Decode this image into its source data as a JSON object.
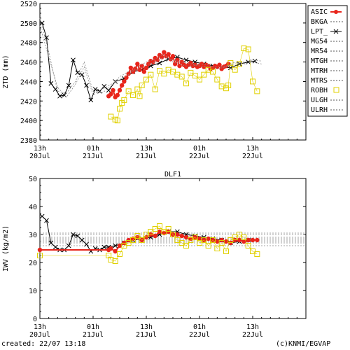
{
  "footer": {
    "created": "created: 22/07 13:18",
    "credit": "(c)KNMI/EGVAP"
  },
  "colors": {
    "ASIC": "#e8251b",
    "LPT_": "#000000",
    "ROBH": "#e0d000",
    "model": "#888888",
    "frame": "#000000"
  },
  "legend": [
    {
      "name": "ASIC",
      "style": "red-dot-line"
    },
    {
      "name": "BKGA",
      "style": "dotted"
    },
    {
      "name": "LPT_",
      "style": "cross-line"
    },
    {
      "name": "MG54",
      "style": "dotted"
    },
    {
      "name": "MR54",
      "style": "dotted"
    },
    {
      "name": "MTGH",
      "style": "dotted"
    },
    {
      "name": "MTRH",
      "style": "dotted"
    },
    {
      "name": "MTRS",
      "style": "dotted"
    },
    {
      "name": "ROBH",
      "style": "yellow-square"
    },
    {
      "name": "ULGH",
      "style": "dotted"
    },
    {
      "name": "ULRH",
      "style": "dotted"
    }
  ],
  "chart_data": [
    {
      "type": "line",
      "title": "",
      "ylabel": "ZTD (mm)",
      "xlabel": "",
      "xlim": [
        0,
        60
      ],
      "ylim": [
        2380,
        2520
      ],
      "yticks": [
        2380,
        2400,
        2420,
        2440,
        2460,
        2480,
        2500,
        2520
      ],
      "xticks": [
        {
          "x": 0,
          "top": "13h",
          "bottom": "20Jul"
        },
        {
          "x": 12,
          "top": "01h",
          "bottom": "21Jul"
        },
        {
          "x": 24,
          "top": "13h",
          "bottom": "21Jul"
        },
        {
          "x": 36,
          "top": "01h",
          "bottom": "22Jul"
        },
        {
          "x": 48,
          "top": "13h",
          "bottom": "22Jul"
        }
      ],
      "grid": false,
      "legend": "right",
      "series": [
        {
          "name": "LPT_",
          "x": [
            0.5,
            1.5,
            2.5,
            3.5,
            4.5,
            5.5,
            6.5,
            7.5,
            8.5,
            9.5,
            10.5,
            11.5,
            12.5,
            13.5,
            14.5,
            15.5,
            17,
            19,
            21,
            23,
            25,
            27,
            29,
            31,
            33,
            35,
            37,
            39,
            41,
            43,
            45,
            47,
            48.5
          ],
          "y": [
            2500,
            2485,
            2438,
            2432,
            2425,
            2426,
            2436,
            2462,
            2449,
            2447,
            2436,
            2421,
            2432,
            2430,
            2435,
            2431,
            2440,
            2443,
            2450,
            2452,
            2456,
            2459,
            2463,
            2465,
            2462,
            2460,
            2458,
            2456,
            2455,
            2454,
            2458,
            2460,
            2461
          ]
        },
        {
          "name": "ASIC",
          "x": [
            15.5,
            16,
            16.5,
            17,
            17.5,
            18,
            18.5,
            19,
            19.5,
            20,
            20.5,
            21,
            21.5,
            22,
            22.5,
            23,
            23.5,
            24,
            24.5,
            25,
            25.5,
            26,
            26.5,
            27,
            27.5,
            28,
            28.5,
            29,
            29.5,
            30,
            30.5,
            31,
            31.5,
            32,
            32.5,
            33,
            33.5,
            34,
            34.5,
            35,
            35.5,
            36,
            36.5,
            37,
            37.5,
            38,
            38.5,
            39,
            39.5,
            40,
            40.5,
            41,
            41.5,
            42,
            42.5
          ],
          "y": [
            2425,
            2427,
            2431,
            2424,
            2426,
            2431,
            2436,
            2440,
            2444,
            2448,
            2454,
            2450,
            2453,
            2458,
            2452,
            2456,
            2450,
            2454,
            2458,
            2461,
            2460,
            2464,
            2462,
            2467,
            2465,
            2470,
            2466,
            2468,
            2463,
            2466,
            2458,
            2462,
            2456,
            2460,
            2457,
            2455,
            2457,
            2459,
            2456,
            2457,
            2455,
            2456,
            2458,
            2455,
            2457,
            2456,
            2453,
            2454,
            2456,
            2455,
            2457,
            2453,
            2455,
            2456,
            2458
          ]
        },
        {
          "name": "ROBH",
          "x": [
            16,
            17,
            17.5,
            18,
            18.5,
            19,
            20,
            21,
            22,
            22.5,
            23,
            24,
            25,
            26,
            27,
            28,
            29,
            30,
            31,
            32,
            33,
            34,
            35,
            36,
            37,
            38,
            39,
            40,
            41,
            42,
            42.5,
            43,
            44,
            45,
            46,
            47,
            48,
            49
          ],
          "y": [
            2404,
            2401,
            2400,
            2412,
            2418,
            2421,
            2430,
            2426,
            2432,
            2425,
            2436,
            2442,
            2447,
            2432,
            2451,
            2448,
            2452,
            2450,
            2447,
            2445,
            2438,
            2449,
            2446,
            2442,
            2447,
            2452,
            2450,
            2442,
            2435,
            2433,
            2436,
            2459,
            2452,
            2458,
            2474,
            2473,
            2440,
            2430
          ]
        },
        {
          "name": "BKGA",
          "x": [
            0,
            2,
            4,
            6,
            8,
            10,
            12,
            14,
            16,
            18,
            20,
            22,
            24,
            26,
            28,
            30,
            32,
            34,
            36,
            38,
            40,
            42,
            44,
            46,
            48,
            50
          ],
          "y": [
            2505,
            2470,
            2430,
            2428,
            2440,
            2460,
            2430,
            2428,
            2435,
            2445,
            2450,
            2452,
            2457,
            2460,
            2465,
            2462,
            2460,
            2458,
            2456,
            2455,
            2455,
            2456,
            2458,
            2460,
            2462,
            2461
          ]
        },
        {
          "name": "MG54",
          "x": [
            0,
            2,
            4,
            6,
            8,
            10,
            12,
            14,
            16,
            18,
            20,
            22,
            24,
            26,
            28,
            30,
            32,
            34,
            36,
            38,
            40,
            42,
            44,
            46,
            48,
            50
          ],
          "y": [
            2497,
            2465,
            2434,
            2424,
            2437,
            2455,
            2426,
            2432,
            2437,
            2442,
            2447,
            2455,
            2460,
            2463,
            2468,
            2460,
            2457,
            2455,
            2458,
            2457,
            2453,
            2455,
            2460,
            2458,
            2460,
            2458
          ]
        }
      ]
    },
    {
      "type": "line",
      "title": "DLF1",
      "ylabel": "IWV (kg/m2)",
      "xlabel": "",
      "xlim": [
        0,
        60
      ],
      "ylim": [
        0,
        50
      ],
      "yticks": [
        0,
        10,
        20,
        30,
        40,
        50
      ],
      "xticks": [
        {
          "x": 0,
          "top": "13h",
          "bottom": "20Jul"
        },
        {
          "x": 12,
          "top": "01h",
          "bottom": "21Jul"
        },
        {
          "x": 24,
          "top": "13h",
          "bottom": "21Jul"
        },
        {
          "x": 36,
          "top": "01h",
          "bottom": "22Jul"
        },
        {
          "x": 48,
          "top": "13h",
          "bottom": "22Jul"
        }
      ],
      "grid": false,
      "series": [
        {
          "name": "LPT_",
          "x": [
            0.5,
            1.5,
            2.5,
            3.5,
            4.5,
            5.5,
            6.5,
            7.5,
            8.5,
            9.5,
            10.5,
            11.5,
            12.5,
            13.5,
            14.5,
            15.5,
            17,
            19,
            21,
            23,
            25,
            27,
            29,
            31,
            33,
            35,
            37,
            39,
            41,
            43,
            45,
            47,
            48.5
          ],
          "y": [
            36.5,
            35,
            27,
            25.5,
            24.5,
            24.5,
            26,
            30,
            29.5,
            28,
            26.5,
            24,
            25,
            24.5,
            25.5,
            25.5,
            26,
            27,
            28,
            28.5,
            29,
            30,
            31,
            31,
            30,
            29.5,
            29,
            28.5,
            28,
            27,
            27.5,
            28,
            28
          ]
        },
        {
          "name": "ASIC",
          "x": [
            0,
            15.5,
            16,
            17,
            18,
            19,
            20,
            21,
            22,
            23,
            24,
            25,
            26,
            27,
            28,
            29,
            30,
            31,
            32,
            33,
            34,
            35,
            36,
            37,
            38,
            39,
            40,
            41,
            42,
            43,
            44,
            45,
            46,
            47,
            48,
            49
          ],
          "y": [
            24.5,
            24.5,
            25,
            24,
            26,
            27,
            28,
            28.5,
            29,
            28,
            29,
            30,
            29.5,
            31,
            30.5,
            31,
            30,
            30,
            29.5,
            29,
            28.5,
            29,
            28.5,
            28,
            28.5,
            28,
            27.5,
            28,
            27.5,
            27,
            28,
            28,
            27.5,
            28,
            28,
            28
          ]
        },
        {
          "name": "ROBH",
          "x": [
            0,
            15.5,
            16,
            17,
            18,
            19,
            20,
            21,
            22,
            23,
            24,
            25,
            26,
            27,
            28,
            29,
            30,
            31,
            32,
            33,
            34,
            35,
            36,
            37,
            38,
            39,
            40,
            41,
            42,
            43,
            44,
            45,
            46,
            47,
            48,
            49
          ],
          "y": [
            22.5,
            22.5,
            21,
            20.5,
            23,
            26,
            27,
            28,
            29.5,
            28,
            30,
            31,
            32,
            33,
            31,
            32,
            30,
            28,
            27,
            26,
            28,
            29,
            27,
            28,
            26,
            28,
            25,
            27,
            24,
            28,
            29,
            30,
            29,
            26,
            24,
            23
          ]
        }
      ],
      "reference_lines": [
        30.5,
        30,
        29,
        28.5,
        28,
        27.5,
        27,
        26
      ]
    }
  ]
}
